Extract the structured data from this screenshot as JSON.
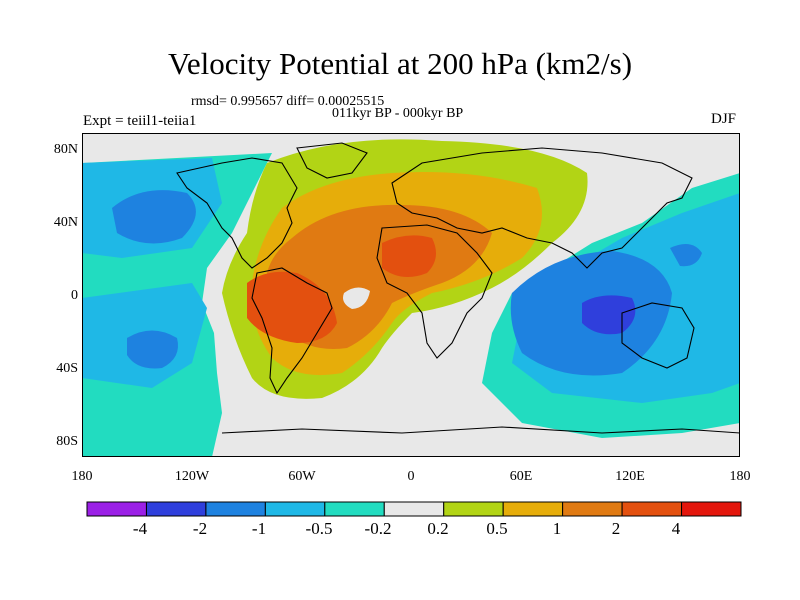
{
  "title": "Velocity Potential at 200 hPa (km2/s)",
  "subtitle": "rmsd= 0.995657 diff= 0.00025515",
  "period": "011kyr BP - 000kyr BP",
  "experiment": "Expt = teiil1-teiia1",
  "season": "DJF",
  "axes": {
    "y_ticks": [
      "80N",
      "40N",
      "0",
      "40S",
      "80S"
    ],
    "x_ticks": [
      "180",
      "120W",
      "60W",
      "0",
      "60E",
      "120E",
      "180"
    ]
  },
  "colorbar": {
    "colors": [
      "#9b20e6",
      "#2f3fdc",
      "#1e82e0",
      "#1fb8e6",
      "#22dcc0",
      "#e8e8e8",
      "#b2d415",
      "#e6ad0a",
      "#e07a12",
      "#e3500f",
      "#e3160c"
    ],
    "labels": [
      "-4",
      "-2",
      "-1",
      "-0.5",
      "-0.2",
      "0.2",
      "0.5",
      "1",
      "2",
      "4"
    ]
  }
}
